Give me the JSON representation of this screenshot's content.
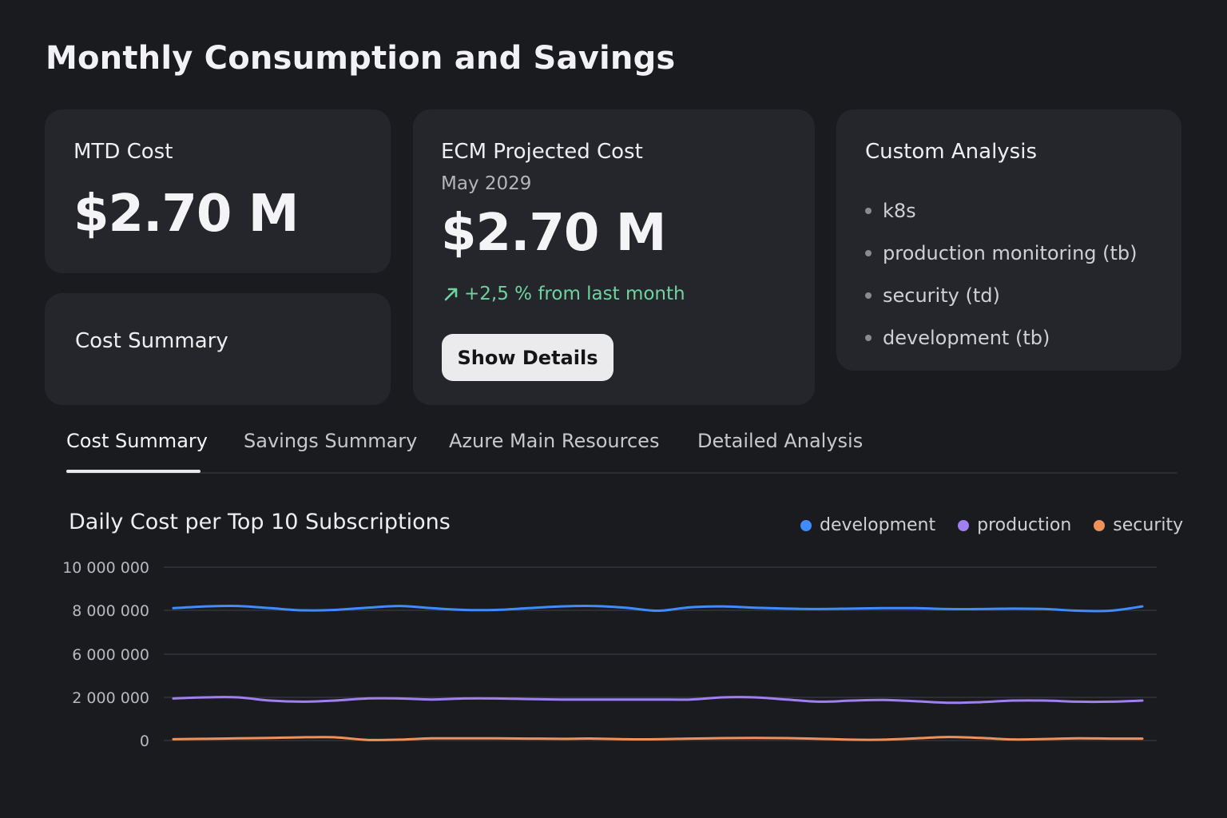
{
  "page": {
    "title": "Monthly Consumption and Savings"
  },
  "mtd_card": {
    "label": "MTD Cost",
    "value": "$2.70 M"
  },
  "summary_card": {
    "label": "Cost Summary"
  },
  "ecm_card": {
    "label": "ECM Projected Cost",
    "period": "May 2029",
    "value": "$2.70 M",
    "delta": "+2,5 % from last month",
    "button_label": "Show Details",
    "delta_color": "#6fd3a0"
  },
  "custom_card": {
    "label": "Custom Analysis",
    "items": [
      "k8s",
      "production monitoring (tb)",
      "security (td)",
      "development (tb)"
    ]
  },
  "tabs": [
    {
      "label": "Cost Summary",
      "active": true
    },
    {
      "label": "Savings Summary",
      "active": false
    },
    {
      "label": "Azure Main Resources",
      "active": false
    },
    {
      "label": "Detailed Analysis",
      "active": false
    }
  ],
  "chart_data": {
    "type": "line",
    "title": "Daily Cost per Top 10 Subscriptions",
    "xlabel": "",
    "ylabel": "",
    "legend_position": "top-right",
    "grid": true,
    "y_ticks": [
      {
        "value": 0,
        "label": "0"
      },
      {
        "value": 2000000,
        "label": "2 000 000"
      },
      {
        "value": 6000000,
        "label": "6 000 000"
      },
      {
        "value": 8000000,
        "label": "8 000 000"
      },
      {
        "value": 10000000,
        "label": "10 000 000"
      }
    ],
    "ylim": [
      0,
      10000000
    ],
    "x": [
      1,
      2,
      3,
      4,
      5,
      6,
      7,
      8,
      9,
      10,
      11,
      12,
      13,
      14,
      15,
      16,
      17,
      18,
      19,
      20,
      21,
      22,
      23,
      24,
      25,
      26,
      27,
      28,
      29,
      30,
      31
    ],
    "series": [
      {
        "name": "development",
        "color": "#3f8bff",
        "values": [
          8100000,
          8180000,
          8200000,
          8100000,
          8000000,
          8020000,
          8120000,
          8200000,
          8100000,
          8020000,
          8020000,
          8100000,
          8180000,
          8200000,
          8120000,
          7980000,
          8140000,
          8180000,
          8120000,
          8080000,
          8060000,
          8080000,
          8100000,
          8100000,
          8060000,
          8060000,
          8080000,
          8060000,
          7980000,
          7980000,
          8180000
        ]
      },
      {
        "name": "production",
        "color": "#a07ff0",
        "values": [
          1950000,
          2000000,
          2000000,
          1850000,
          1800000,
          1850000,
          1950000,
          1950000,
          1900000,
          1950000,
          1950000,
          1920000,
          1900000,
          1900000,
          1900000,
          1900000,
          1900000,
          2000000,
          2000000,
          1900000,
          1800000,
          1850000,
          1880000,
          1820000,
          1750000,
          1780000,
          1850000,
          1850000,
          1800000,
          1800000,
          1850000
        ]
      },
      {
        "name": "security",
        "color": "#f0915a",
        "values": [
          60000,
          80000,
          100000,
          120000,
          150000,
          150000,
          30000,
          40000,
          100000,
          100000,
          100000,
          90000,
          80000,
          90000,
          60000,
          60000,
          90000,
          110000,
          120000,
          110000,
          80000,
          40000,
          40000,
          100000,
          160000,
          120000,
          50000,
          70000,
          100000,
          90000,
          90000
        ]
      }
    ]
  }
}
